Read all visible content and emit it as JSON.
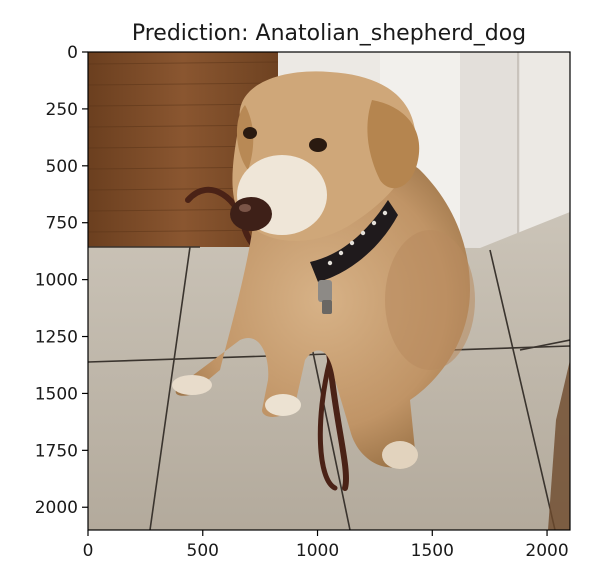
{
  "chart_data": {
    "type": "image",
    "title": "Prediction: Anatolian_shepherd_dog",
    "xlabel": "",
    "ylabel": "",
    "xlim": [
      0,
      2100
    ],
    "ylim": [
      2100,
      0
    ],
    "xticks": [
      0,
      500,
      1000,
      1500,
      2000
    ],
    "yticks": [
      0,
      250,
      500,
      750,
      1000,
      1250,
      1500,
      1750,
      2000
    ],
    "grid": false,
    "image_subject": "dog",
    "colors": {
      "wood_floor": "#7a4a26",
      "tile": "#bdb5a8",
      "wall": "#ece9e4",
      "dog_coat": "#c9a173",
      "collar": "#1f1a1c",
      "leash": "#4a2216"
    }
  }
}
